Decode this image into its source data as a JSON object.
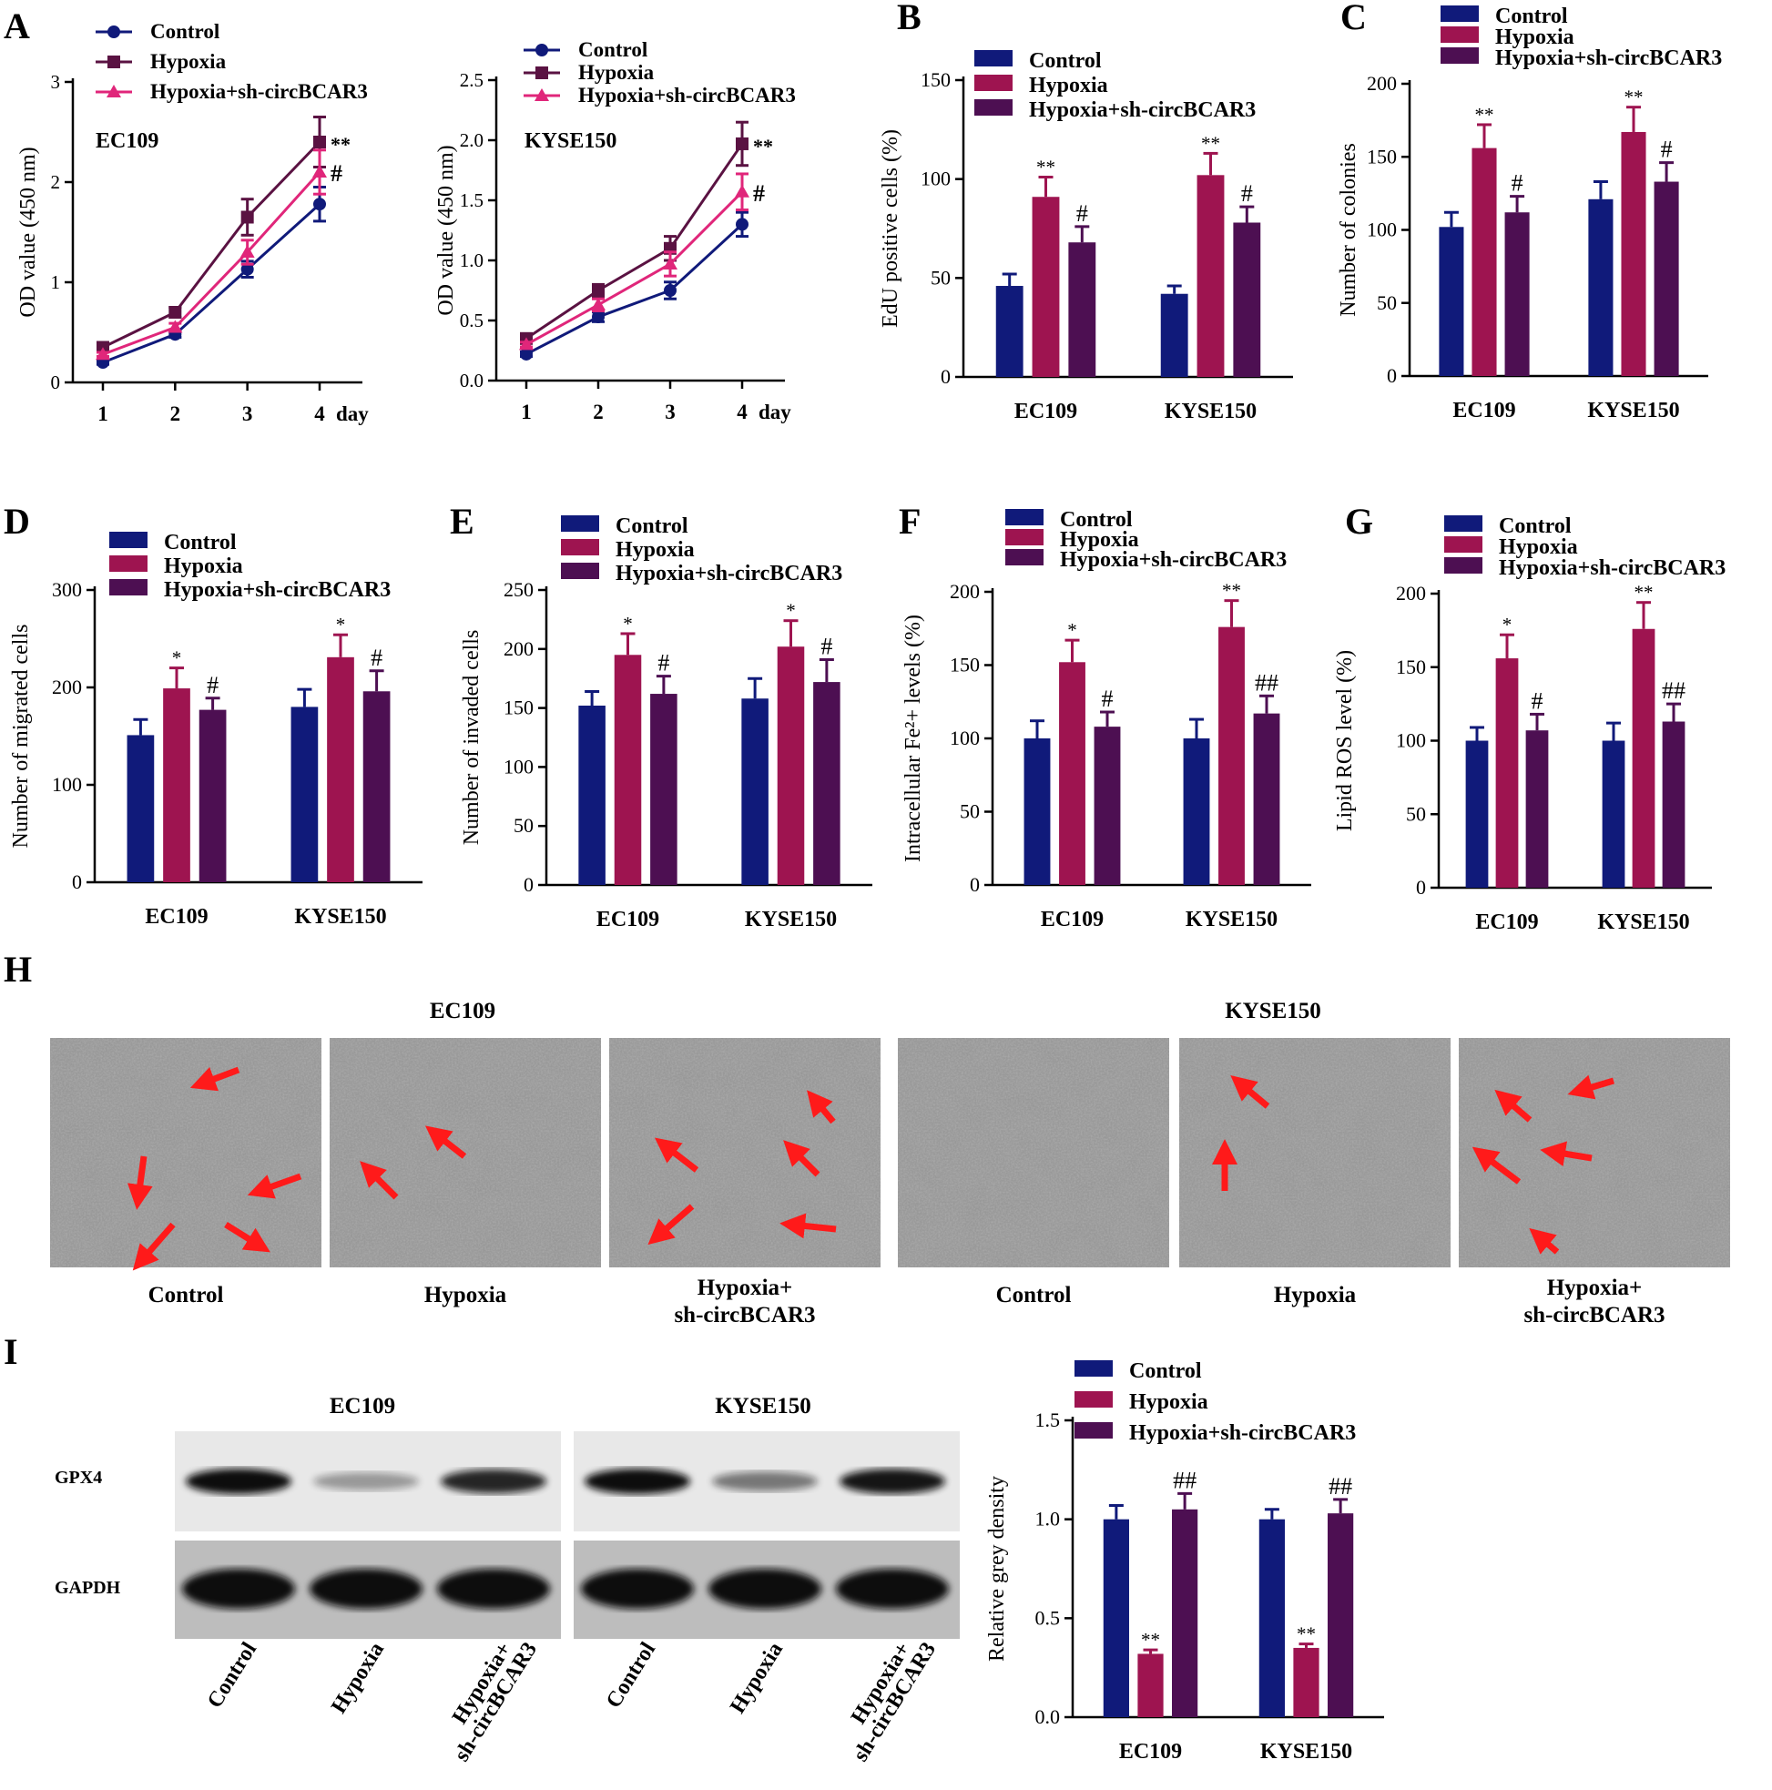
{
  "colors": {
    "control": "#101a7a",
    "hypoxia": "#9e1450",
    "sh": "#4d0f52",
    "hypoxia_line": "#5a1242",
    "sh_line": "#e0267a",
    "arrow": "#ff1a1a"
  },
  "legend": [
    "Control",
    "Hypoxia",
    "Hypoxia+sh-circBCAR3"
  ],
  "chart_data": [
    {
      "panel": "A",
      "type": "line",
      "annotation": "EC109",
      "x": [
        1,
        2,
        3,
        4
      ],
      "xticks": [
        "1",
        "2",
        "3",
        "4"
      ],
      "xunit": "day",
      "ylabel": "OD value (450 nm)",
      "ylim": [
        0,
        3
      ],
      "yticks": [
        0,
        1,
        2,
        3
      ],
      "series": [
        {
          "name": "Control",
          "values": [
            0.2,
            0.48,
            1.13,
            1.78
          ],
          "err": [
            0.02,
            0.03,
            0.08,
            0.17
          ]
        },
        {
          "name": "Hypoxia",
          "values": [
            0.35,
            0.7,
            1.65,
            2.4
          ],
          "err": [
            0.03,
            0.05,
            0.18,
            0.25
          ]
        },
        {
          "name": "Hypoxia+sh-circBCAR3",
          "values": [
            0.28,
            0.55,
            1.3,
            2.1
          ],
          "err": [
            0.02,
            0.04,
            0.12,
            0.22
          ]
        }
      ],
      "marks": [
        {
          "text": "**",
          "series": "Hypoxia"
        },
        {
          "text": "#",
          "series": "Hypoxia+sh-circBCAR3"
        }
      ]
    },
    {
      "panel": "A2",
      "type": "line",
      "annotation": "KYSE150",
      "x": [
        1,
        2,
        3,
        4
      ],
      "xticks": [
        "1",
        "2",
        "3",
        "4"
      ],
      "xunit": "day",
      "ylabel": "OD value (450 nm)",
      "ylim": [
        0,
        2.5
      ],
      "yticks": [
        "0.0",
        "0.5",
        "1.0",
        "1.5",
        "2.0",
        "2.5"
      ],
      "series": [
        {
          "name": "Control",
          "values": [
            0.22,
            0.53,
            0.75,
            1.3
          ],
          "err": [
            0.02,
            0.04,
            0.07,
            0.1
          ]
        },
        {
          "name": "Hypoxia",
          "values": [
            0.35,
            0.75,
            1.1,
            1.97
          ],
          "err": [
            0.03,
            0.05,
            0.1,
            0.18
          ]
        },
        {
          "name": "Hypoxia+sh-circBCAR3",
          "values": [
            0.3,
            0.63,
            0.97,
            1.57
          ],
          "err": [
            0.02,
            0.05,
            0.1,
            0.15
          ]
        }
      ],
      "marks": [
        {
          "text": "**",
          "series": "Hypoxia"
        },
        {
          "text": "#",
          "series": "Hypoxia+sh-circBCAR3"
        }
      ]
    },
    {
      "panel": "B",
      "type": "bar",
      "categories": [
        "EC109",
        "KYSE150"
      ],
      "ylabel": "EdU positive cells (%)",
      "ylim": [
        0,
        150
      ],
      "yticks": [
        0,
        50,
        100,
        150
      ],
      "series": [
        {
          "name": "Control",
          "values": [
            46,
            42
          ],
          "err": [
            6,
            4
          ]
        },
        {
          "name": "Hypoxia",
          "values": [
            91,
            102
          ],
          "err": [
            10,
            11
          ]
        },
        {
          "name": "Hypoxia+sh-circBCAR3",
          "values": [
            68,
            78
          ],
          "err": [
            8,
            8
          ]
        }
      ],
      "marks": [
        [
          "",
          "**",
          "#"
        ],
        [
          "",
          "**",
          "#"
        ]
      ]
    },
    {
      "panel": "C",
      "type": "bar",
      "categories": [
        "EC109",
        "KYSE150"
      ],
      "ylabel": "Number of colonies",
      "ylim": [
        0,
        200
      ],
      "yticks": [
        0,
        50,
        100,
        150,
        200
      ],
      "series": [
        {
          "name": "Control",
          "values": [
            102,
            121
          ],
          "err": [
            10,
            12
          ]
        },
        {
          "name": "Hypoxia",
          "values": [
            156,
            167
          ],
          "err": [
            16,
            17
          ]
        },
        {
          "name": "Hypoxia+sh-circBCAR3",
          "values": [
            112,
            133
          ],
          "err": [
            11,
            13
          ]
        }
      ],
      "marks": [
        [
          "",
          "**",
          "#"
        ],
        [
          "",
          "**",
          "#"
        ]
      ]
    },
    {
      "panel": "D",
      "type": "bar",
      "categories": [
        "EC109",
        "KYSE150"
      ],
      "ylabel": "Number of migrated cells",
      "ylim": [
        0,
        300
      ],
      "yticks": [
        0,
        100,
        200,
        300
      ],
      "series": [
        {
          "name": "Control",
          "values": [
            151,
            180
          ],
          "err": [
            16,
            18
          ]
        },
        {
          "name": "Hypoxia",
          "values": [
            199,
            231
          ],
          "err": [
            21,
            23
          ]
        },
        {
          "name": "Hypoxia+sh-circBCAR3",
          "values": [
            177,
            196
          ],
          "err": [
            12,
            21
          ]
        }
      ],
      "marks": [
        [
          "",
          "*",
          "#"
        ],
        [
          "",
          "*",
          "#"
        ]
      ]
    },
    {
      "panel": "E",
      "type": "bar",
      "categories": [
        "EC109",
        "KYSE150"
      ],
      "ylabel": "Number of invaded cells",
      "ylim": [
        0,
        250
      ],
      "yticks": [
        0,
        50,
        100,
        150,
        200,
        250
      ],
      "series": [
        {
          "name": "Control",
          "values": [
            152,
            158
          ],
          "err": [
            12,
            17
          ]
        },
        {
          "name": "Hypoxia",
          "values": [
            195,
            202
          ],
          "err": [
            18,
            22
          ]
        },
        {
          "name": "Hypoxia+sh-circBCAR3",
          "values": [
            162,
            172
          ],
          "err": [
            15,
            19
          ]
        }
      ],
      "marks": [
        [
          "",
          "*",
          "#"
        ],
        [
          "",
          "*",
          "#"
        ]
      ]
    },
    {
      "panel": "F",
      "type": "bar",
      "categories": [
        "EC109",
        "KYSE150"
      ],
      "ylabel": "Intracellular Fe²+ levels (%)",
      "ylim": [
        0,
        200
      ],
      "yticks": [
        0,
        50,
        100,
        150,
        200
      ],
      "series": [
        {
          "name": "Control",
          "values": [
            100,
            100
          ],
          "err": [
            12,
            13
          ]
        },
        {
          "name": "Hypoxia",
          "values": [
            152,
            176
          ],
          "err": [
            15,
            18
          ]
        },
        {
          "name": "Hypoxia+sh-circBCAR3",
          "values": [
            108,
            117
          ],
          "err": [
            10,
            12
          ]
        }
      ],
      "marks": [
        [
          "",
          "*",
          "#"
        ],
        [
          "",
          "**",
          "##"
        ]
      ]
    },
    {
      "panel": "G",
      "type": "bar",
      "categories": [
        "EC109",
        "KYSE150"
      ],
      "ylabel": "Lipid ROS level (%)",
      "ylim": [
        0,
        200
      ],
      "yticks": [
        0,
        50,
        100,
        150,
        200
      ],
      "series": [
        {
          "name": "Control",
          "values": [
            100,
            100
          ],
          "err": [
            9,
            12
          ]
        },
        {
          "name": "Hypoxia",
          "values": [
            156,
            176
          ],
          "err": [
            16,
            18
          ]
        },
        {
          "name": "Hypoxia+sh-circBCAR3",
          "values": [
            107,
            113
          ],
          "err": [
            11,
            12
          ]
        }
      ],
      "marks": [
        [
          "",
          "*",
          "#"
        ],
        [
          "",
          "**",
          "##"
        ]
      ]
    },
    {
      "panel": "I",
      "type": "bar",
      "categories": [
        "EC109",
        "KYSE150"
      ],
      "ylabel": "Relative grey density",
      "ylim": [
        0,
        1.5
      ],
      "yticks": [
        "0.0",
        "0.5",
        "1.0",
        "1.5"
      ],
      "series": [
        {
          "name": "Control",
          "values": [
            1.0,
            1.0
          ],
          "err": [
            0.07,
            0.05
          ]
        },
        {
          "name": "Hypoxia",
          "values": [
            0.32,
            0.35
          ],
          "err": [
            0.02,
            0.02
          ]
        },
        {
          "name": "Hypoxia+sh-circBCAR3",
          "values": [
            1.05,
            1.03
          ],
          "err": [
            0.08,
            0.07
          ]
        }
      ],
      "marks": [
        [
          "",
          "**",
          "##"
        ],
        [
          "",
          "**",
          "##"
        ]
      ]
    }
  ],
  "panel_h": {
    "letter": "H",
    "groups": [
      "EC109",
      "KYSE150"
    ],
    "captions": [
      "Control",
      "Hypoxia",
      "Hypoxia+",
      "sh-circBCAR3"
    ]
  },
  "panel_i": {
    "letter": "I",
    "blot_groups": [
      "EC109",
      "KYSE150"
    ],
    "rows": [
      "GPX4",
      "GAPDH"
    ],
    "lanes": [
      "Control",
      "Hypoxia",
      "Hypoxia+",
      "sh-circBCAR3"
    ],
    "gpx4_intensity": [
      [
        1.0,
        0.15,
        0.85
      ],
      [
        1.0,
        0.35,
        0.95
      ]
    ]
  }
}
